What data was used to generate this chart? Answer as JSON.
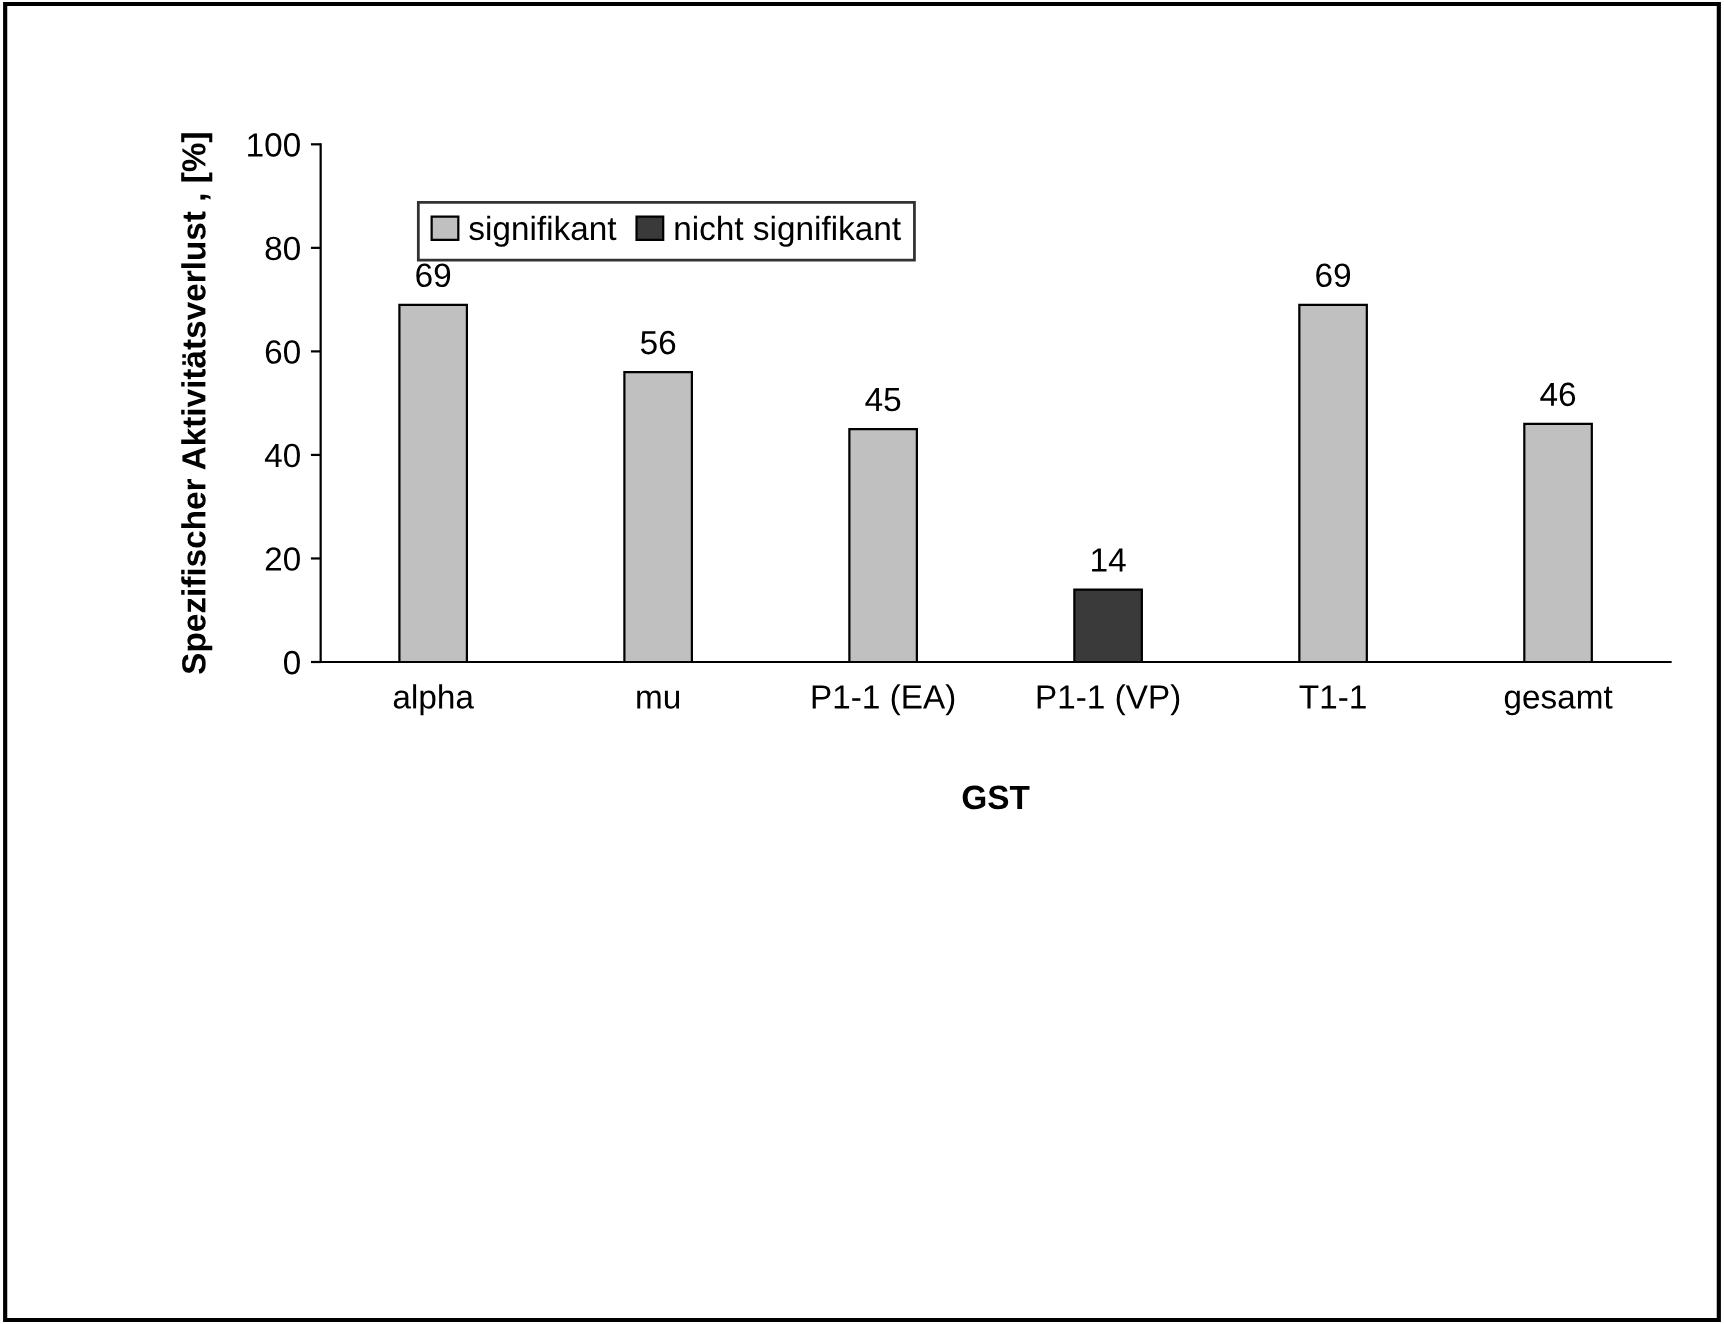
{
  "chart_data": {
    "type": "bar",
    "xlabel": "GST",
    "ylabel": "Spezifischer Aktivitätsverlust , [%]",
    "categories": [
      "alpha",
      "mu",
      "P1-1 (EA)",
      "P1-1 (VP)",
      "T1-1",
      "gesamt"
    ],
    "series": [
      {
        "name": "signifikant",
        "color": "#c0c0c0",
        "values": [
          69,
          56,
          45,
          null,
          69,
          46
        ]
      },
      {
        "name": "nicht signifikant",
        "color": "#3a3a3a",
        "values": [
          null,
          null,
          null,
          14,
          null,
          null
        ]
      }
    ],
    "ylim": [
      0,
      100
    ],
    "yticks": [
      0,
      20,
      40,
      60,
      80,
      100
    ],
    "data_labels": true,
    "legend": "top left",
    "grid": false
  }
}
